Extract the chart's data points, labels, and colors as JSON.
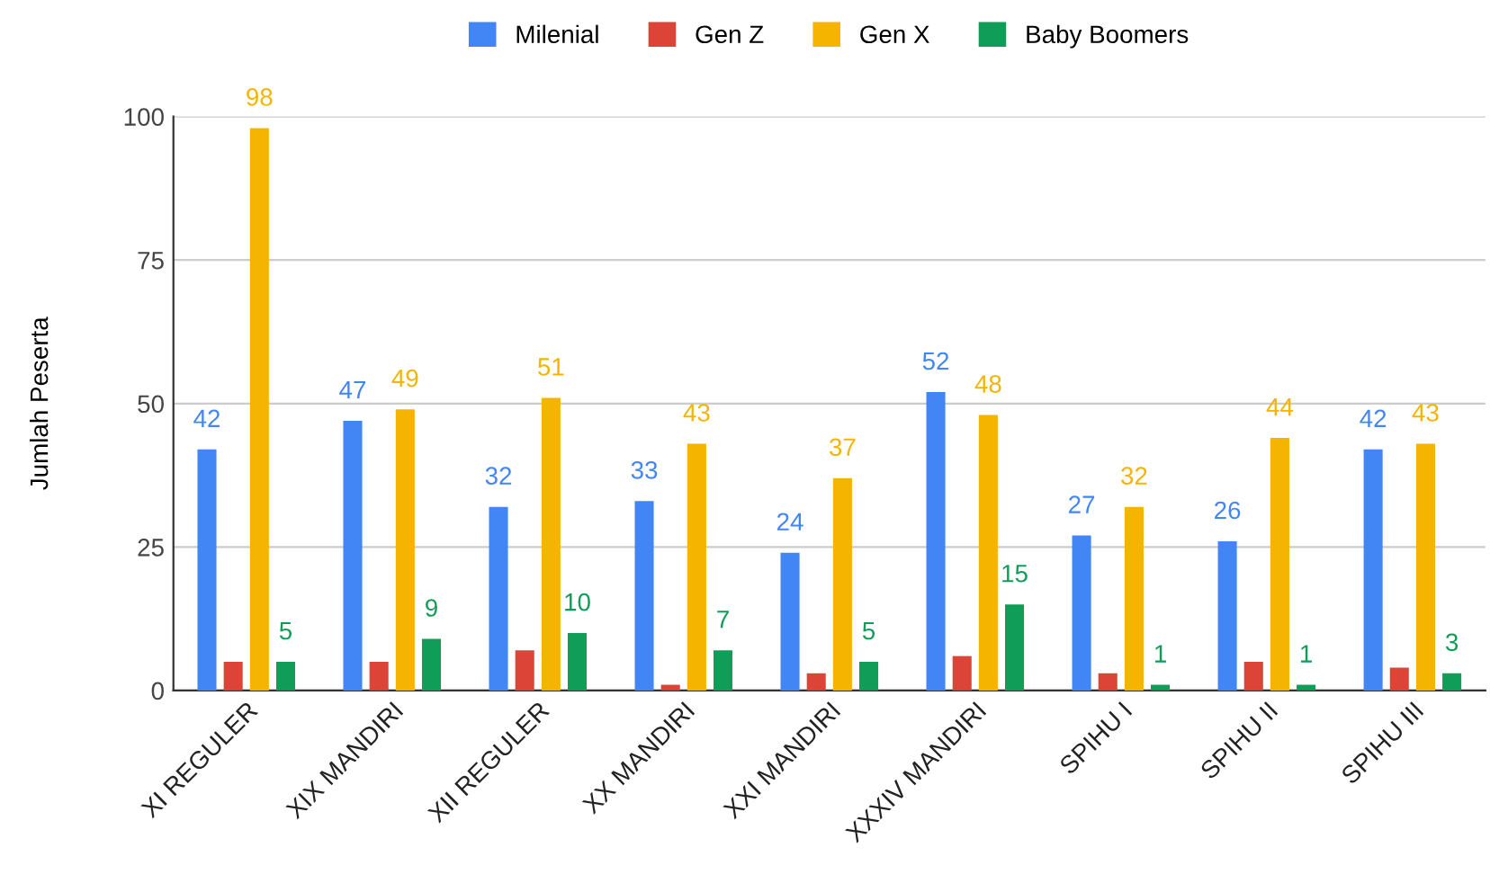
{
  "chart_data": {
    "type": "bar",
    "ylabel": "Jumlah Peserta",
    "categories": [
      "XI REGULER",
      "XIX MANDIRI",
      "XII REGULER",
      "XX MANDIRI",
      "XXI MANDIRI",
      "XXXIV MANDIRI",
      "SPIHU I",
      "SPIHU II",
      "SPIHU III"
    ],
    "series": [
      {
        "name": "Milenial",
        "color": "#4285f4",
        "values": [
          42,
          47,
          32,
          33,
          24,
          52,
          27,
          26,
          42
        ],
        "value_labels": [
          "42",
          "47",
          "32",
          "33",
          "24",
          "52",
          "27",
          "26",
          "42"
        ]
      },
      {
        "name": "Gen Z",
        "color": "#db4437",
        "values": [
          5,
          5,
          7,
          1,
          3,
          6,
          3,
          5,
          4
        ]
      },
      {
        "name": "Gen X",
        "color": "#f4b400",
        "values": [
          98,
          49,
          51,
          43,
          37,
          48,
          32,
          44,
          43
        ],
        "value_labels": [
          "98",
          "49",
          "51",
          "43",
          "37",
          "48",
          "32",
          "44",
          "43"
        ]
      },
      {
        "name": "Baby Boomers",
        "color": "#0f9d58",
        "values": [
          5,
          9,
          10,
          7,
          5,
          15,
          1,
          1,
          3
        ],
        "value_labels": [
          "5",
          "9",
          "10",
          "7",
          "5",
          "15",
          "1",
          "1",
          "3"
        ]
      }
    ],
    "ylim": [
      0,
      100
    ],
    "yticks": [
      0,
      25,
      50,
      75,
      100
    ],
    "grid": "y",
    "legend": "top"
  }
}
